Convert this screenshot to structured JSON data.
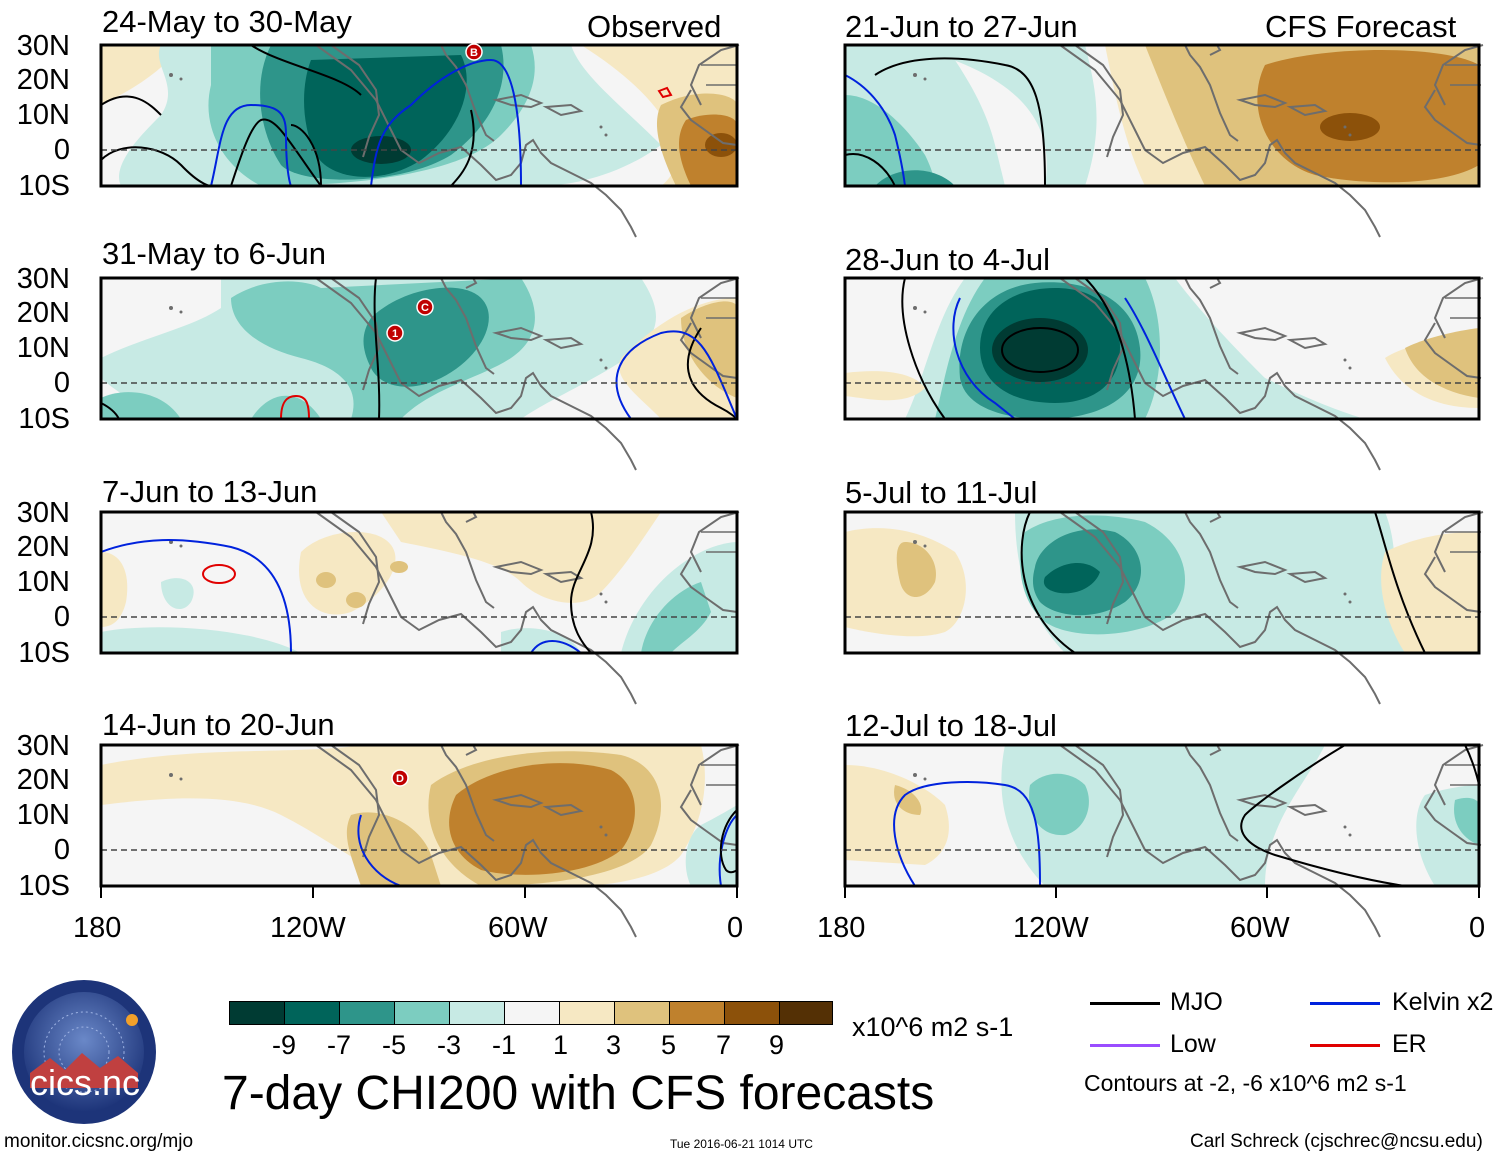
{
  "panels": [
    {
      "title": "24-May to 30-May",
      "label": "Observed"
    },
    {
      "title": "31-May to 6-Jun"
    },
    {
      "title": "7-Jun to 13-Jun"
    },
    {
      "title": "14-Jun to 20-Jun"
    },
    {
      "title": "21-Jun to 27-Jun",
      "label": "CFS Forecast"
    },
    {
      "title": "28-Jun to 4-Jul"
    },
    {
      "title": "5-Jul to 11-Jul"
    },
    {
      "title": "12-Jul to 18-Jul"
    }
  ],
  "lat_labels": [
    "30N",
    "20N",
    "10N",
    "0",
    "10S"
  ],
  "lon_labels": [
    "180",
    "120W",
    "60W",
    "0"
  ],
  "colorbar": {
    "colors": [
      "#003b33",
      "#00645a",
      "#2e958a",
      "#7ccdc0",
      "#c7eae4",
      "#f5f5f5",
      "#f6e8c3",
      "#dfc27d",
      "#bf812d",
      "#8c510a",
      "#543005"
    ],
    "labels": [
      "-9",
      "-7",
      "-5",
      "-3",
      "-1",
      "1",
      "3",
      "5",
      "7",
      "9"
    ],
    "units": "x10^6 m2 s-1"
  },
  "main_title": "7-day CHI200 with CFS forecasts",
  "legend": {
    "items": [
      {
        "label": "MJO",
        "color": "#000000"
      },
      {
        "label": "Kelvin x2",
        "color": "#0000ee"
      },
      {
        "label": "Low",
        "color": "#9a4dff"
      },
      {
        "label": "ER",
        "color": "#e00000"
      }
    ],
    "note": "Contours at -2, -6 x10^6 m2 s-1"
  },
  "logo": {
    "text": "cics.nc",
    "ring_text": "Cooperative Institute for Climate and Satellites"
  },
  "storm_markers": [
    {
      "panel": 0,
      "label": "B"
    },
    {
      "panel": 1,
      "label": "1"
    },
    {
      "panel": 1,
      "label": "C"
    },
    {
      "panel": 3,
      "label": "D"
    }
  ],
  "footer": {
    "left": "monitor.cicsnc.org/mjo",
    "center": "Tue 2016-06-21 1014 UTC",
    "right": "Carl Schreck (cjschrec@ncsu.edu)"
  }
}
